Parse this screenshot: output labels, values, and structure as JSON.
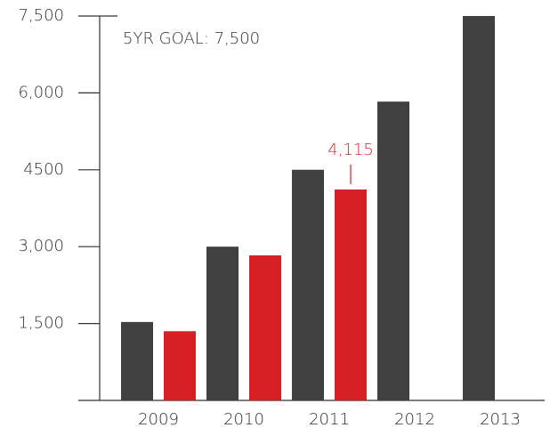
{
  "chart_data": {
    "type": "bar",
    "annotation": "5YR GOAL:  7,500",
    "categories": [
      "2009",
      "2010",
      "2011",
      "2012",
      "2013"
    ],
    "series": [
      {
        "color": "#404040",
        "values": [
          1530,
          3000,
          4500,
          5830,
          7500
        ]
      },
      {
        "color": "#d71f26",
        "values": [
          1350,
          2830,
          4115,
          null,
          null
        ],
        "value_labels": [
          null,
          null,
          "4,115",
          null,
          null
        ]
      }
    ],
    "ylim": [
      0,
      7500
    ],
    "yticks": [
      {
        "value": 1500,
        "label": "1,500"
      },
      {
        "value": 3000,
        "label": "3,000"
      },
      4500,
      {
        "value": 6000,
        "label": "6,000"
      },
      {
        "value": 7500,
        "label": "7,500"
      }
    ]
  }
}
